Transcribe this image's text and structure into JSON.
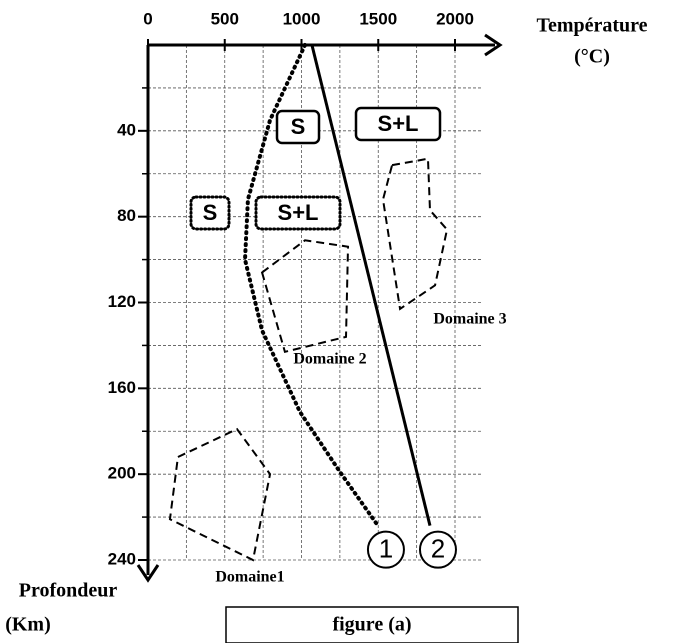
{
  "chart_data": {
    "type": "line",
    "x_label": "Température",
    "x_unit": "(°C)",
    "y_label": "Profondeur",
    "y_unit": "(Km)",
    "caption": "figure (a)",
    "xlim": [
      0,
      2000
    ],
    "ylim": [
      0,
      240
    ],
    "xticks": [
      0,
      500,
      1000,
      1500,
      2000
    ],
    "yticks": [
      40,
      80,
      120,
      160,
      200,
      240
    ],
    "xminor": [
      250,
      750,
      1250,
      1750
    ],
    "yminor": [
      20,
      60,
      100,
      140,
      180,
      220
    ],
    "grid": true,
    "series": [
      {
        "name": "1",
        "color": "#000000",
        "style": "dotted",
        "x": [
          1023,
          795,
          651,
          632,
          743,
          990,
          1251,
          1498
        ],
        "values": [
          0,
          35,
          72,
          100,
          133,
          171,
          199,
          224
        ]
      },
      {
        "name": "2",
        "color": "#000000",
        "style": "solid",
        "x": [
          1068,
          1837
        ],
        "values": [
          0,
          224
        ]
      }
    ],
    "regions": [
      {
        "name": "Domaine1",
        "points": [
          [
            195,
            192
          ],
          [
            580,
            179
          ],
          [
            795,
            200
          ],
          [
            684,
            240
          ],
          [
            143,
            221
          ]
        ]
      },
      {
        "name": "Domaine 2",
        "points": [
          [
            743,
            106
          ],
          [
            1023,
            91
          ],
          [
            1303,
            94
          ],
          [
            1290,
            136
          ],
          [
            892,
            143
          ]
        ]
      },
      {
        "name": "Domaine  3",
        "points": [
          [
            1590,
            56
          ],
          [
            1824,
            53
          ],
          [
            1837,
            77
          ],
          [
            1948,
            86
          ],
          [
            1870,
            112
          ],
          [
            1642,
            123
          ],
          [
            1531,
            72
          ]
        ]
      }
    ],
    "phase_labels": [
      {
        "text": "S",
        "border": "solid"
      },
      {
        "text": "S+L",
        "border": "solid"
      },
      {
        "text": "S",
        "border": "dotted"
      },
      {
        "text": "S+L",
        "border": "dotted"
      }
    ]
  }
}
